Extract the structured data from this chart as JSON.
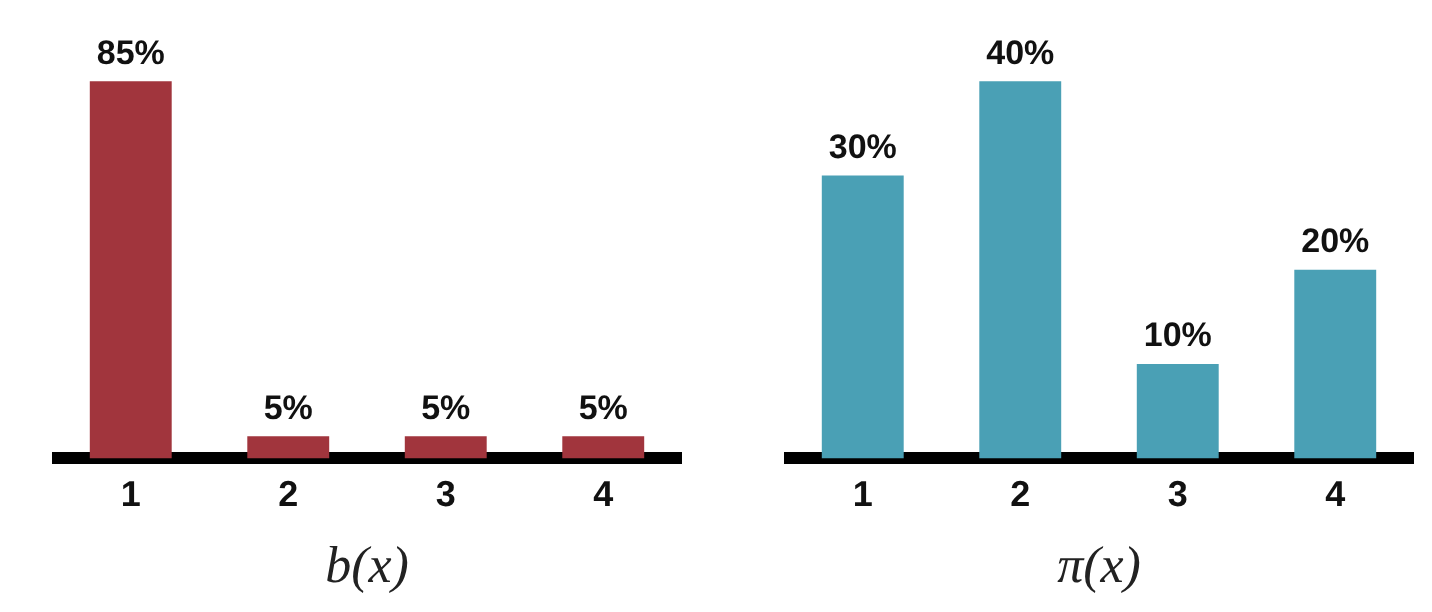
{
  "chart_data": [
    {
      "type": "bar",
      "xlabel": "b(x)",
      "categories": [
        "1",
        "2",
        "3",
        "4"
      ],
      "values": [
        85,
        5,
        5,
        5
      ],
      "color": "#a1353d",
      "value_labels": [
        "85%",
        "5%",
        "5%",
        "5%"
      ],
      "tick_labels": "x",
      "grid": false,
      "legend": false
    },
    {
      "type": "bar",
      "xlabel": "π(x)",
      "categories": [
        "1",
        "2",
        "3",
        "4"
      ],
      "values": [
        30,
        40,
        10,
        20
      ],
      "color": "#4aa0b5",
      "value_labels": [
        "30%",
        "40%",
        "10%",
        "20%"
      ],
      "tick_labels": "x",
      "grid": false,
      "legend": false
    }
  ]
}
